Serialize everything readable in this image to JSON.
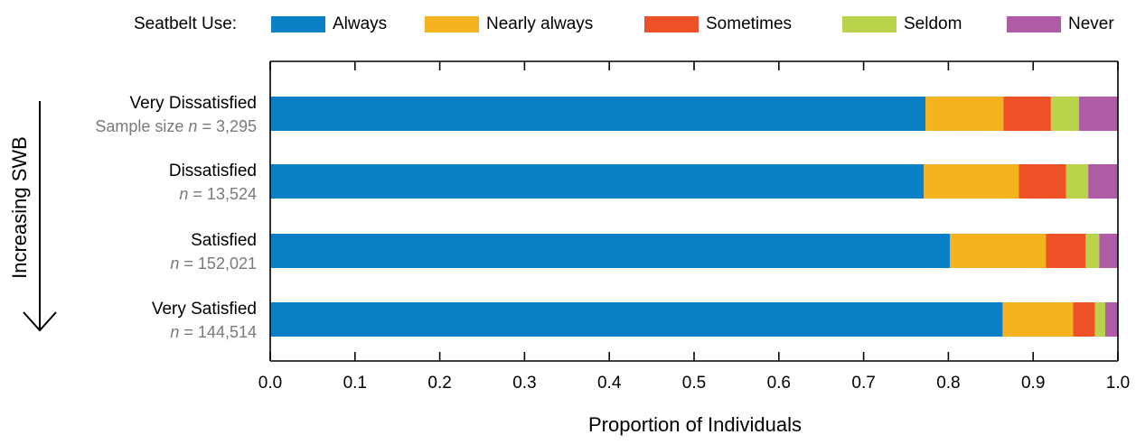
{
  "legend": {
    "title": "Seatbelt Use:",
    "items": [
      {
        "label": "Always",
        "color": "#0a80c6"
      },
      {
        "label": "Nearly always",
        "color": "#f5b41f"
      },
      {
        "label": "Sometimes",
        "color": "#ee5126"
      },
      {
        "label": "Seldom",
        "color": "#b9d34a"
      },
      {
        "label": "Never",
        "color": "#af5ba6"
      }
    ]
  },
  "side_note": {
    "label": "Increasing SWB"
  },
  "chart_data": {
    "type": "bar",
    "orientation": "horizontal",
    "stacked": true,
    "categories": [
      {
        "label": "Very Dissatisfied",
        "sample": "Sample size",
        "n_label": "n",
        "n_value": "= 3,295"
      },
      {
        "label": "Dissatisfied",
        "sample": "",
        "n_label": "n",
        "n_value": "= 13,524"
      },
      {
        "label": "Satisfied",
        "sample": "",
        "n_label": "n",
        "n_value": "= 152,021"
      },
      {
        "label": "Very Satisfied",
        "sample": "",
        "n_label": "n",
        "n_value": "= 144,514"
      }
    ],
    "series": [
      {
        "name": "Always",
        "values": [
          0.773,
          0.771,
          0.802,
          0.864
        ]
      },
      {
        "name": "Nearly always",
        "values": [
          0.092,
          0.112,
          0.113,
          0.083
        ]
      },
      {
        "name": "Sometimes",
        "values": [
          0.056,
          0.056,
          0.047,
          0.026
        ]
      },
      {
        "name": "Seldom",
        "values": [
          0.033,
          0.026,
          0.016,
          0.012
        ]
      },
      {
        "name": "Never",
        "values": [
          0.046,
          0.034,
          0.022,
          0.015
        ]
      }
    ],
    "xlabel": "Proportion of Individuals",
    "xlim": [
      0.0,
      1.0
    ],
    "xticks": [
      "0.0",
      "0.1",
      "0.2",
      "0.3",
      "0.4",
      "0.5",
      "0.6",
      "0.7",
      "0.8",
      "0.9",
      "1.0"
    ],
    "grid": false,
    "legend_position": "top"
  }
}
